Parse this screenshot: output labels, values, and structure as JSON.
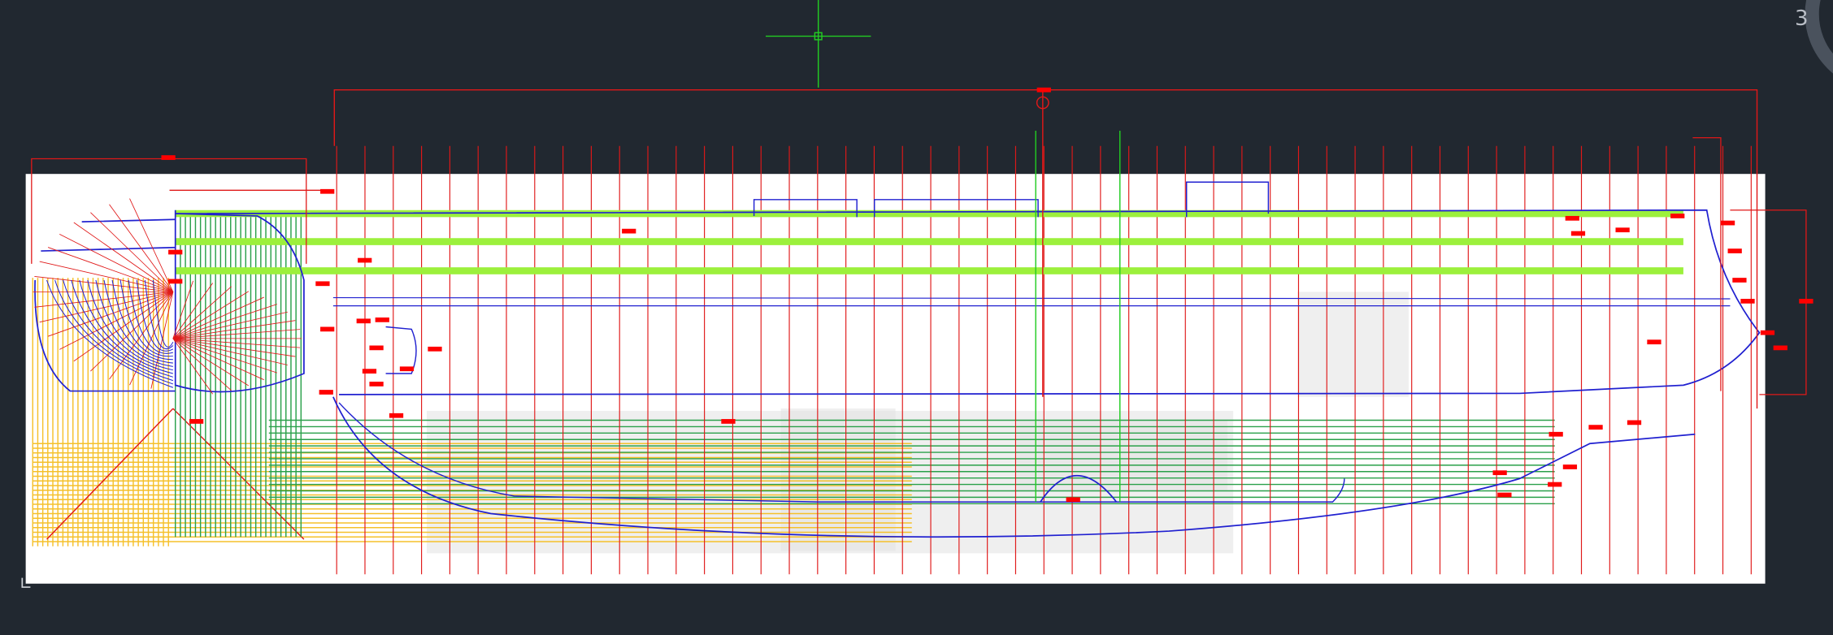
{
  "viewport": {
    "background": "#212830",
    "viewcube_label": "3"
  },
  "drawing": {
    "paper_color": "#ffffff",
    "colors": {
      "dimension": "#e01818",
      "hull_lines": "#2020d0",
      "waterlines": "#9cf03c",
      "buttocks": "#2aa04a",
      "sections": "#f5c02a",
      "crosshair": "#22cc22",
      "grip": "#ff0000"
    },
    "icons": [
      "crosshair-cursor-icon",
      "viewcube-ring-icon",
      "ucs-icon"
    ]
  }
}
